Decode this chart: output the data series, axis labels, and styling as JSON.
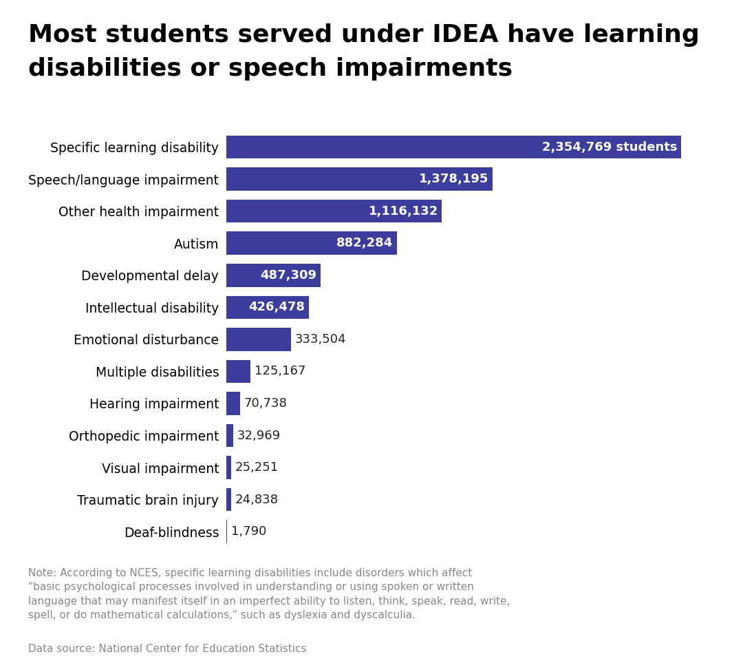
{
  "title_line1": "Most students served under IDEA have learning",
  "title_line2": "disabilities or speech impairments",
  "categories": [
    "Specific learning disability",
    "Speech/language impairment",
    "Other health impairment",
    "Autism",
    "Developmental delay",
    "Intellectual disability",
    "Emotional disturbance",
    "Multiple disabilities",
    "Hearing impairment",
    "Orthopedic impairment",
    "Visual impairment",
    "Traumatic brain injury",
    "Deaf-blindness"
  ],
  "values": [
    2354769,
    1378195,
    1116132,
    882284,
    487309,
    426478,
    333504,
    125167,
    70738,
    32969,
    25251,
    24838,
    1790
  ],
  "labels": [
    "2,354,769 students",
    "1,378,195",
    "1,116,132",
    "882,284",
    "487,309",
    "426,478",
    "333,504",
    "125,167",
    "70,738",
    "32,969",
    "25,251",
    "24,838",
    "1,790"
  ],
  "bar_color": "#3d3d9e",
  "label_inside_color": "#ffffff",
  "label_outside_color": "#222222",
  "inside_threshold": 400000,
  "background_color": "#ffffff",
  "title_fontsize": 26,
  "label_fontsize": 13,
  "category_fontsize": 13.5,
  "note_text": "Note: According to NCES, specific learning disabilities include disorders which affect\n\"basic psychological processes involved in understanding or using spoken or written\nlanguage that may manifest itself in an imperfect ability to listen, think, speak, read, write,\nspell, or do mathematical calculations,\" such as dyslexia and dyscalculia.",
  "source_text": "Data source: National Center for Education Statistics",
  "note_fontsize": 11,
  "xlim": [
    0,
    2600000
  ]
}
